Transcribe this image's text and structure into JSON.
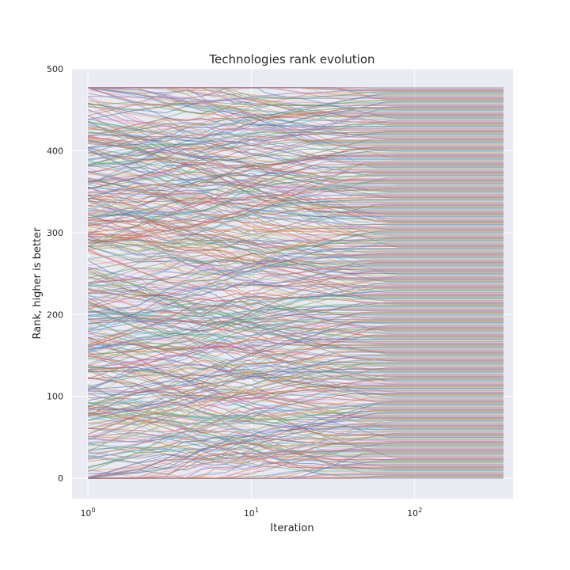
{
  "chart_data": {
    "type": "line",
    "title": "Technologies rank evolution",
    "xlabel": "Iteration",
    "ylabel": "Rank, higher is better",
    "xscale": "log",
    "xlim": [
      0.8,
      400
    ],
    "ylim": [
      -25,
      500
    ],
    "x_range": [
      1,
      350
    ],
    "series_count": 478,
    "rank_range": [
      0,
      477
    ],
    "x_ticks": [
      {
        "value": 1,
        "base": "10",
        "exp": "0"
      },
      {
        "value": 10,
        "base": "10",
        "exp": "1"
      },
      {
        "value": 100,
        "base": "10",
        "exp": "2"
      }
    ],
    "y_ticks": [
      0,
      100,
      200,
      300,
      400,
      500
    ],
    "grid": true,
    "legend": "none",
    "background_color": "#eaeaf2",
    "grid_color": "#ffffff",
    "line_alpha": 0.55,
    "palette": [
      "#4c72b0",
      "#dd8452",
      "#55a868",
      "#c44e52",
      "#8172b3",
      "#937860",
      "#da8bc3",
      "#8c8c8c",
      "#ccb974",
      "#64b5cd"
    ],
    "note_series": "Each of the series traces one technology's rank across iterations; ranks start scattered at iteration 1 and converge to stable horizontal lines by iteration ~100."
  }
}
